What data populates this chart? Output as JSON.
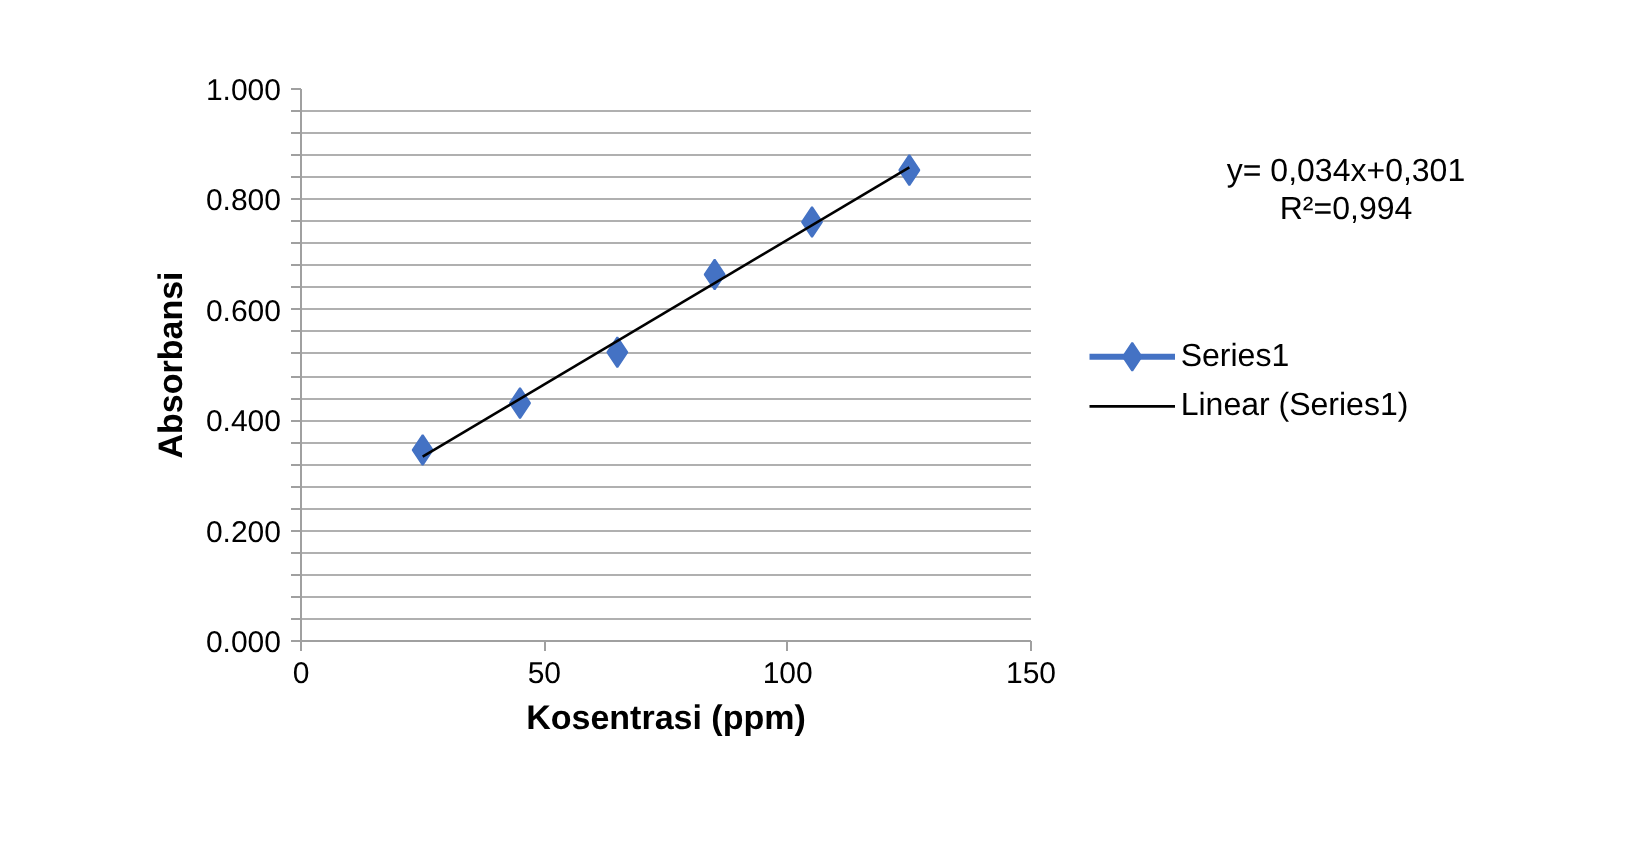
{
  "chart_data": {
    "type": "scatter",
    "xlabel": "Kosentrasi (ppm)",
    "ylabel": "Absorbansi",
    "x": [
      25,
      45,
      65,
      85,
      105,
      125
    ],
    "series": [
      {
        "name": "Series1",
        "color": "#4472c4",
        "marker": "diamond",
        "values": [
          0.346,
          0.431,
          0.523,
          0.664,
          0.759,
          0.853
        ]
      },
      {
        "name": "Linear (Series1)",
        "color": "#000000",
        "x": [
          25,
          125
        ],
        "values": [
          0.334,
          0.858
        ],
        "type": "line"
      }
    ],
    "xlim": [
      0,
      150
    ],
    "xticks": [
      0,
      50,
      100,
      150
    ],
    "ylim": [
      0,
      1
    ],
    "yticks": [
      {
        "value": 0,
        "label": "0.000"
      },
      {
        "value": 0.04,
        "label": null
      },
      {
        "value": 0.08,
        "label": null
      },
      {
        "value": 0.12,
        "label": null
      },
      {
        "value": 0.16,
        "label": null
      },
      {
        "value": 0.2,
        "label": "0.200"
      },
      {
        "value": 0.24,
        "label": null
      },
      {
        "value": 0.28,
        "label": null
      },
      {
        "value": 0.32,
        "label": null
      },
      {
        "value": 0.36,
        "label": null
      },
      {
        "value": 0.4,
        "label": "0.400"
      },
      {
        "value": 0.44,
        "label": null
      },
      {
        "value": 0.48,
        "label": null
      },
      {
        "value": 0.52,
        "label": null
      },
      {
        "value": 0.56,
        "label": null
      },
      {
        "value": 0.6,
        "label": "0.600"
      },
      {
        "value": 0.64,
        "label": null
      },
      {
        "value": 0.68,
        "label": null
      },
      {
        "value": 0.72,
        "label": null
      },
      {
        "value": 0.76,
        "label": null
      },
      {
        "value": 0.8,
        "label": "0.800"
      },
      {
        "value": 0.84,
        "label": null
      },
      {
        "value": 0.88,
        "label": null
      },
      {
        "value": 0.92,
        "label": null
      },
      {
        "value": 0.96,
        "label": null
      },
      {
        "value": 1,
        "label": "1.000"
      }
    ],
    "grid": "y",
    "legend": "right",
    "line_style": "solid",
    "annotations": [
      "y= 0,034x+0,301",
      "R²=0,994"
    ]
  }
}
